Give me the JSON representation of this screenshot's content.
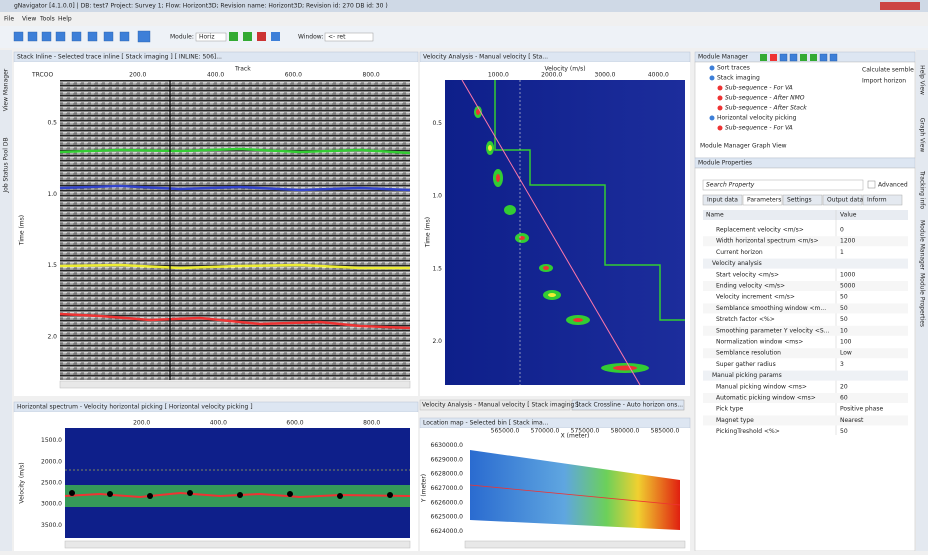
{
  "title_bar": "gNavigator [4.1.0.0] | DB: test7  Project: Survey 1; Flow: Horizont3D; Revision name: Horizont3D; Revision id: 270 DB id: 30 )",
  "menu": [
    "File",
    "View",
    "Tools",
    "Help"
  ],
  "toolbar": {
    "module_label": "Module:",
    "module_value": "Horiz",
    "window_label": "Window:",
    "window_value": "<- ret"
  },
  "left_tabs": [
    "View Manager",
    "Job Status Pool DB"
  ],
  "right_tabs": [
    "Help View",
    "Graph View",
    "Tracking info",
    "Module Manager",
    "Module Properties"
  ],
  "stack_panel": {
    "title": "Stack Inline - Selected trace inline [ Stack imaging ] [ INLINE: 506]...",
    "corner": "TRCOO",
    "x_label": "Track",
    "x_ticks": [
      "200.0",
      "400.0",
      "600.0",
      "800.0"
    ],
    "y_label": "Time (ms)",
    "y_ticks": [
      "0.5",
      "1.0",
      "1.5",
      "2.0"
    ]
  },
  "velocity_panel": {
    "title": "Velocity Analysis - Manual velocity [ Sta...",
    "x_label": "Velocity (m/s)",
    "x_ticks": [
      "1000.0",
      "2000.0",
      "3000.0",
      "4000.0"
    ],
    "y_label": "Time (ms)",
    "y_ticks": [
      "0.5",
      "1.0",
      "1.5",
      "2.0"
    ],
    "tabs": [
      "Velocity Analysis - Manual velocity [ Stack imaging ]",
      "Stack Crossline - Auto horizon ons..."
    ]
  },
  "spectrum_panel": {
    "title": "Horizontal spectrum - Velocity horizontal picking [ Horizontal velocity picking ]",
    "y_label": "Velocity (m/s)",
    "y_ticks": [
      "1500.0",
      "2000.0",
      "2500.0",
      "3000.0",
      "3500.0"
    ],
    "x_ticks": [
      "200.0",
      "400.0",
      "600.0",
      "800.0"
    ]
  },
  "map_panel": {
    "title": "Location map - Selected bin [ Stack ima...",
    "x_label": "X (meter)",
    "x_ticks": [
      "565000.0",
      "570000.0",
      "575000.0",
      "580000.0",
      "585000.0"
    ],
    "y_label": "Y (meter)",
    "y_ticks": [
      "6630000.0",
      "6629000.0",
      "6628000.0",
      "6627000.0",
      "6626000.0",
      "6625000.0",
      "6624000.0"
    ]
  },
  "module_manager": {
    "title": "Module Manager",
    "tree": [
      "Sort traces",
      "Stack imaging",
      "Sub-sequence - For VA",
      "Sub-sequence - After NMO",
      "Sub-sequence - After Stack",
      "Horizontal velocity picking",
      "Sub-sequence - For VA"
    ],
    "side": [
      "Calculate semble",
      "Import horizon"
    ],
    "tabs": [
      "Module Manager",
      "Graph View"
    ]
  },
  "module_properties": {
    "title": "Module Properties",
    "search": "Search Property",
    "advanced": "Advanced",
    "tabs": [
      "Input data",
      "Parameters",
      "Settings",
      "Output data",
      "Inform"
    ],
    "columns": [
      "Name",
      "Value"
    ],
    "rows": [
      {
        "name": "Replacement velocity <m/s>",
        "value": "0"
      },
      {
        "name": "Width horizontal spectrum <m/s>",
        "value": "1200"
      },
      {
        "name": "Current horizon",
        "value": "1"
      },
      {
        "group": "Velocity analysis"
      },
      {
        "name": "Start velocity <m/s>",
        "value": "1000"
      },
      {
        "name": "Ending velocity <m/s>",
        "value": "5000"
      },
      {
        "name": "Velocity increment <m/s>",
        "value": "50"
      },
      {
        "name": "Semblance smoothing window <m...",
        "value": "50"
      },
      {
        "name": "Stretch factor <%>",
        "value": "50"
      },
      {
        "name": "Smoothing parameter Y velocity <S...",
        "value": "10"
      },
      {
        "name": "Normalization window <ms>",
        "value": "100"
      },
      {
        "name": "Semblance resolution",
        "value": "Low"
      },
      {
        "name": "Super gather radius",
        "value": "3"
      },
      {
        "group": "Manual picking params"
      },
      {
        "name": "Manual picking window <ms>",
        "value": "20"
      },
      {
        "name": "Automatic picking window <ms>",
        "value": "60"
      },
      {
        "name": "Pick type",
        "value": "Positive phase"
      },
      {
        "name": "Magnet type",
        "value": "Nearest"
      },
      {
        "name": "PickingTreshold <%>",
        "value": "50"
      }
    ]
  }
}
